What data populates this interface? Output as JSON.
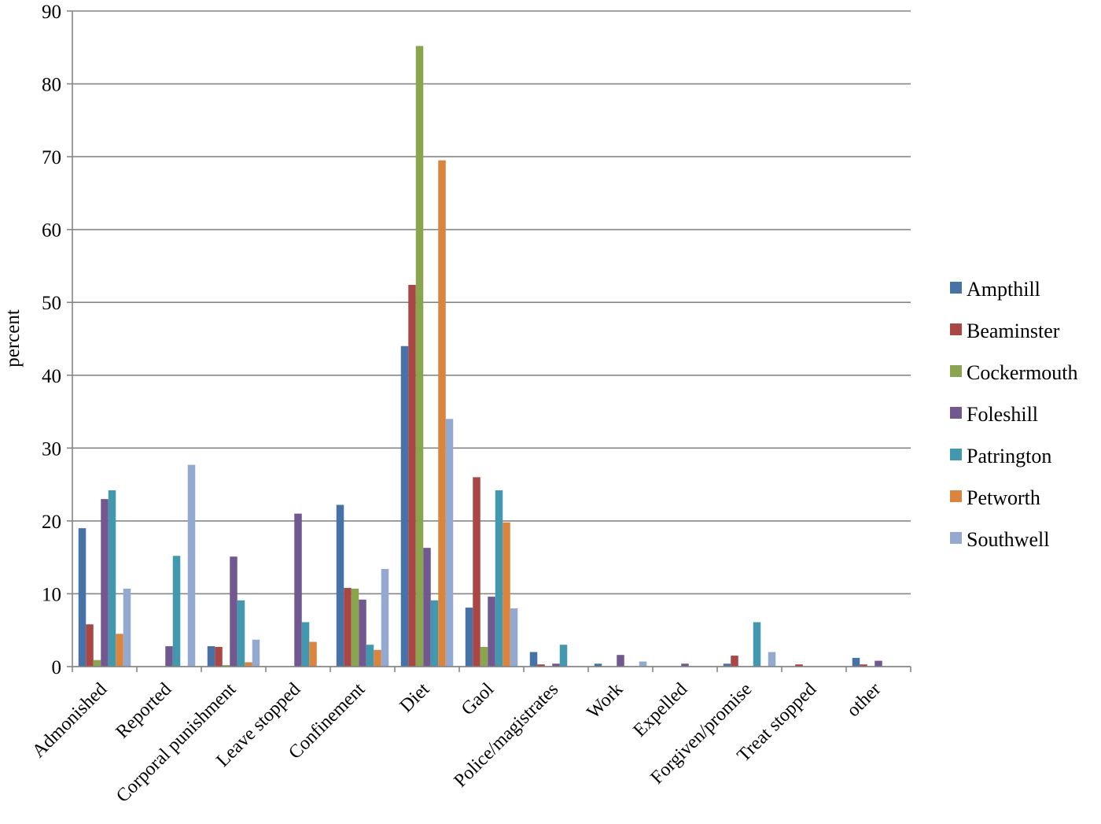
{
  "chart_data": {
    "type": "bar",
    "title": "",
    "xlabel": "",
    "ylabel": "percent",
    "ylim": [
      0,
      90
    ],
    "ytick_step": 10,
    "grid": true,
    "legend_position": "right",
    "categories": [
      "Admonished",
      "Reported",
      "Corporal punishment",
      "Leave stopped",
      "Confinement",
      "Diet",
      "Gaol",
      "Police/magistrates",
      "Work",
      "Expelled",
      "Forgiven/promise",
      "Treat stopped",
      "other"
    ],
    "series": [
      {
        "name": "Ampthill",
        "color": "#4572A7",
        "values": [
          19,
          0,
          2.8,
          0,
          22.2,
          44,
          8.1,
          2,
          0.4,
          0,
          0.4,
          0,
          1.2
        ]
      },
      {
        "name": "Beaminster",
        "color": "#AA4643",
        "values": [
          5.8,
          0,
          2.7,
          0,
          10.8,
          52.4,
          26,
          0.3,
          0,
          0,
          1.5,
          0.3,
          0.3
        ]
      },
      {
        "name": "Cockermouth",
        "color": "#89A54E",
        "values": [
          0.9,
          0,
          0.2,
          0,
          10.7,
          85.2,
          2.7,
          0,
          0,
          0,
          0,
          0,
          0
        ]
      },
      {
        "name": "Foleshill",
        "color": "#71588F",
        "values": [
          23,
          2.8,
          15.1,
          21,
          9.2,
          16.3,
          9.6,
          0.4,
          1.6,
          0.4,
          0,
          0,
          0.8
        ]
      },
      {
        "name": "Patrington",
        "color": "#4198AF",
        "values": [
          24.2,
          15.2,
          9.1,
          6.1,
          3,
          9.1,
          24.2,
          3,
          0,
          0,
          6.1,
          0,
          0
        ]
      },
      {
        "name": "Petworth",
        "color": "#DB843D",
        "values": [
          4.5,
          0,
          0.6,
          3.4,
          2.3,
          69.5,
          19.8,
          0,
          0,
          0,
          0,
          0,
          0
        ]
      },
      {
        "name": "Southwell",
        "color": "#93A9CF",
        "values": [
          10.7,
          27.7,
          3.7,
          0,
          13.4,
          34,
          8,
          0,
          0.7,
          0,
          2,
          0,
          0
        ]
      }
    ]
  }
}
